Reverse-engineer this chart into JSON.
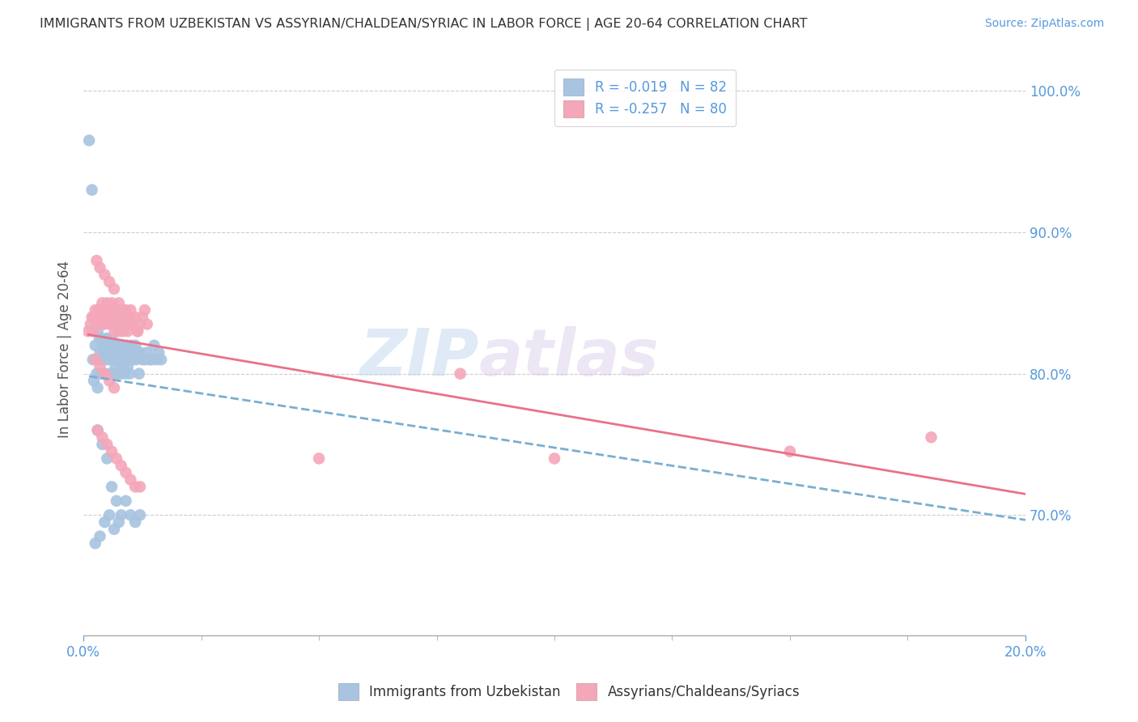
{
  "title": "IMMIGRANTS FROM UZBEKISTAN VS ASSYRIAN/CHALDEAN/SYRIAC IN LABOR FORCE | AGE 20-64 CORRELATION CHART",
  "source": "Source: ZipAtlas.com",
  "ylabel": "In Labor Force | Age 20-64",
  "legend_blue_r": "R = -0.019",
  "legend_blue_n": "N = 82",
  "legend_pink_r": "R = -0.257",
  "legend_pink_n": "N = 80",
  "legend_blue_label": "Immigrants from Uzbekistan",
  "legend_pink_label": "Assyrians/Chaldeans/Syriacs",
  "watermark_top": "ZIP",
  "watermark_bot": "atlas",
  "blue_color": "#a8c4e0",
  "pink_color": "#f4a7b9",
  "blue_line_color": "#7aaed0",
  "pink_line_color": "#e8728a",
  "background_color": "#ffffff",
  "grid_color": "#cccccc",
  "xlim": [
    0.0,
    0.2
  ],
  "ylim": [
    0.615,
    1.02
  ],
  "ytick_positions": [
    1.0,
    0.9,
    0.8,
    0.7
  ],
  "ytick_labels": [
    "100.0%",
    "90.0%",
    "80.0%",
    "70.0%"
  ],
  "xtick_positions": [
    0.0,
    0.2
  ],
  "xtick_labels": [
    "0.0%",
    "20.0%"
  ],
  "blue_scatter_x": [
    0.0012,
    0.0018,
    0.002,
    0.0022,
    0.0025,
    0.0028,
    0.003,
    0.003,
    0.0032,
    0.0034,
    0.0035,
    0.0036,
    0.0038,
    0.004,
    0.004,
    0.0042,
    0.0044,
    0.0045,
    0.0046,
    0.0048,
    0.005,
    0.0052,
    0.0054,
    0.0055,
    0.0056,
    0.0058,
    0.006,
    0.0062,
    0.0064,
    0.0065,
    0.0066,
    0.0068,
    0.007,
    0.0072,
    0.0074,
    0.0075,
    0.0076,
    0.0078,
    0.008,
    0.0082,
    0.0084,
    0.0086,
    0.0088,
    0.009,
    0.0092,
    0.0094,
    0.0096,
    0.0098,
    0.01,
    0.0102,
    0.0105,
    0.0108,
    0.011,
    0.0112,
    0.0115,
    0.0118,
    0.012,
    0.0125,
    0.013,
    0.0135,
    0.014,
    0.0145,
    0.015,
    0.0155,
    0.016,
    0.0165,
    0.003,
    0.004,
    0.005,
    0.006,
    0.007,
    0.008,
    0.009,
    0.01,
    0.011,
    0.012,
    0.0025,
    0.0035,
    0.0045,
    0.0055,
    0.0065,
    0.0075
  ],
  "blue_scatter_y": [
    0.965,
    0.93,
    0.81,
    0.795,
    0.82,
    0.8,
    0.83,
    0.79,
    0.81,
    0.825,
    0.815,
    0.8,
    0.825,
    0.835,
    0.81,
    0.82,
    0.815,
    0.8,
    0.81,
    0.82,
    0.825,
    0.815,
    0.81,
    0.82,
    0.8,
    0.815,
    0.825,
    0.81,
    0.8,
    0.82,
    0.815,
    0.805,
    0.82,
    0.81,
    0.8,
    0.815,
    0.81,
    0.8,
    0.82,
    0.81,
    0.805,
    0.815,
    0.8,
    0.81,
    0.82,
    0.805,
    0.815,
    0.8,
    0.81,
    0.82,
    0.81,
    0.815,
    0.82,
    0.81,
    0.815,
    0.8,
    0.815,
    0.81,
    0.81,
    0.815,
    0.81,
    0.81,
    0.82,
    0.81,
    0.815,
    0.81,
    0.76,
    0.75,
    0.74,
    0.72,
    0.71,
    0.7,
    0.71,
    0.7,
    0.695,
    0.7,
    0.68,
    0.685,
    0.695,
    0.7,
    0.69,
    0.695
  ],
  "pink_scatter_x": [
    0.001,
    0.0015,
    0.0018,
    0.002,
    0.0022,
    0.0025,
    0.0028,
    0.003,
    0.0032,
    0.0034,
    0.0036,
    0.0038,
    0.004,
    0.0042,
    0.0044,
    0.0046,
    0.0048,
    0.005,
    0.0052,
    0.0054,
    0.0056,
    0.0058,
    0.006,
    0.0062,
    0.0064,
    0.0066,
    0.0068,
    0.007,
    0.0072,
    0.0074,
    0.0076,
    0.0078,
    0.008,
    0.0082,
    0.0084,
    0.0086,
    0.0088,
    0.009,
    0.0092,
    0.0094,
    0.0096,
    0.0098,
    0.01,
    0.0105,
    0.011,
    0.0115,
    0.012,
    0.0125,
    0.013,
    0.0135,
    0.0028,
    0.0035,
    0.0045,
    0.0055,
    0.0065,
    0.0075,
    0.0085,
    0.0095,
    0.0105,
    0.0115,
    0.0025,
    0.0035,
    0.0045,
    0.0055,
    0.0065,
    0.003,
    0.004,
    0.005,
    0.006,
    0.007,
    0.008,
    0.009,
    0.01,
    0.011,
    0.012,
    0.05,
    0.08,
    0.1,
    0.15,
    0.18
  ],
  "pink_scatter_y": [
    0.83,
    0.835,
    0.84,
    0.83,
    0.84,
    0.845,
    0.835,
    0.84,
    0.845,
    0.835,
    0.84,
    0.845,
    0.85,
    0.84,
    0.835,
    0.845,
    0.84,
    0.85,
    0.845,
    0.84,
    0.835,
    0.845,
    0.85,
    0.84,
    0.835,
    0.83,
    0.84,
    0.845,
    0.835,
    0.84,
    0.83,
    0.845,
    0.84,
    0.835,
    0.83,
    0.84,
    0.835,
    0.845,
    0.84,
    0.83,
    0.835,
    0.84,
    0.845,
    0.835,
    0.84,
    0.83,
    0.835,
    0.84,
    0.845,
    0.835,
    0.88,
    0.875,
    0.87,
    0.865,
    0.86,
    0.85,
    0.845,
    0.84,
    0.835,
    0.83,
    0.81,
    0.805,
    0.8,
    0.795,
    0.79,
    0.76,
    0.755,
    0.75,
    0.745,
    0.74,
    0.735,
    0.73,
    0.725,
    0.72,
    0.72,
    0.74,
    0.8,
    0.74,
    0.745,
    0.755
  ]
}
